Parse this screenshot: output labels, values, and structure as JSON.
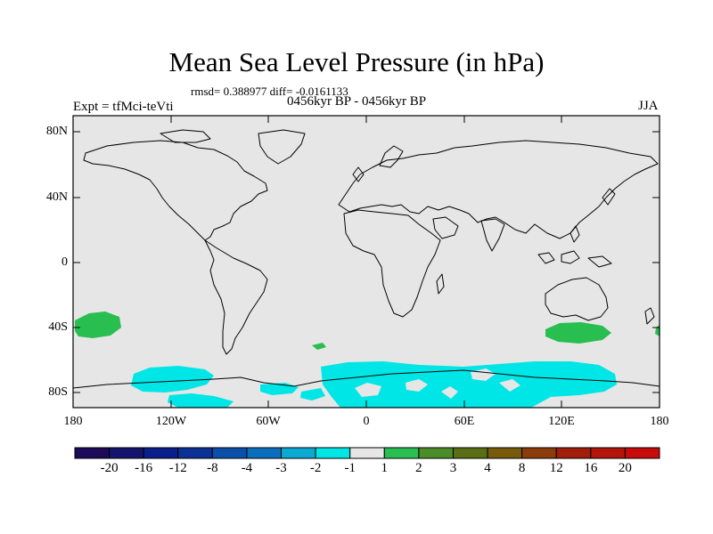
{
  "title": "Mean Sea Level Pressure (in hPa)",
  "stats": "rmsd= 0.388977 diff= -0.0161133",
  "period": "0456kyr BP - 0456kyr BP",
  "experiment": "Expt = tfMci-teVti",
  "season": "JJA",
  "map": {
    "lat_ticks": [
      "80N",
      "40N",
      "0",
      "40S",
      "80S"
    ],
    "lon_ticks": [
      "180",
      "120W",
      "60W",
      "0",
      "60E",
      "120E",
      "180"
    ],
    "ocean_color": "#e6e6e6",
    "coastline_color": "#000000"
  },
  "colorbar": {
    "labels": [
      "-20",
      "-16",
      "-12",
      "-8",
      "-4",
      "-3",
      "-2",
      "-1",
      "1",
      "2",
      "3",
      "4",
      "8",
      "12",
      "16",
      "20"
    ],
    "colors": [
      "#1e0a5a",
      "#14146e",
      "#0a1e8c",
      "#0a3296",
      "#0a50aa",
      "#0a6ebe",
      "#0aaad2",
      "#00e6e6",
      "#e6e6e6",
      "#28be50",
      "#4b8c28",
      "#5a6e14",
      "#785a0a",
      "#8c3c0a",
      "#a01e0a",
      "#b4140a",
      "#c80a0a"
    ]
  },
  "anomaly_colors": {
    "negative_small": "#00e6e6",
    "positive_small": "#28be50"
  }
}
